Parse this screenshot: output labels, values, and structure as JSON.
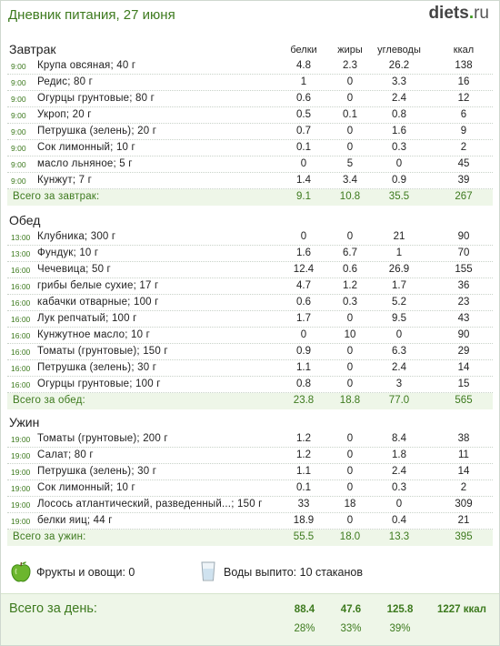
{
  "header": {
    "title": "Дневник питания, 27 июня",
    "logo_main": "diets",
    "logo_dot": ".",
    "logo_tld": "ru"
  },
  "columns": {
    "protein": "белки",
    "fat": "жиры",
    "carbs": "углеводы",
    "kcal": "ккал"
  },
  "breakfast": {
    "title": "Завтрак",
    "items": [
      {
        "time": "9:00",
        "name": "Крупа овсяная; 40 г",
        "protein": "4.8",
        "fat": "2.3",
        "carbs": "26.2",
        "kcal": "138"
      },
      {
        "time": "9:00",
        "name": "Редис; 80 г",
        "protein": "1",
        "fat": "0",
        "carbs": "3.3",
        "kcal": "16"
      },
      {
        "time": "9:00",
        "name": "Огурцы грунтовые; 80 г",
        "protein": "0.6",
        "fat": "0",
        "carbs": "2.4",
        "kcal": "12"
      },
      {
        "time": "9:00",
        "name": "Укроп; 20 г",
        "protein": "0.5",
        "fat": "0.1",
        "carbs": "0.8",
        "kcal": "6"
      },
      {
        "time": "9:00",
        "name": "Петрушка (зелень); 20 г",
        "protein": "0.7",
        "fat": "0",
        "carbs": "1.6",
        "kcal": "9"
      },
      {
        "time": "9:00",
        "name": "Сок лимонный; 10 г",
        "protein": "0.1",
        "fat": "0",
        "carbs": "0.3",
        "kcal": "2"
      },
      {
        "time": "9:00",
        "name": "масло льняное; 5 г",
        "protein": "0",
        "fat": "5",
        "carbs": "0",
        "kcal": "45"
      },
      {
        "time": "9:00",
        "name": "Кунжут; 7 г",
        "protein": "1.4",
        "fat": "3.4",
        "carbs": "0.9",
        "kcal": "39"
      }
    ],
    "total": {
      "label": "Всего за завтрак:",
      "protein": "9.1",
      "fat": "10.8",
      "carbs": "35.5",
      "kcal": "267"
    }
  },
  "lunch": {
    "title": "Обед",
    "items": [
      {
        "time": "13:00",
        "name": "Клубника; 300 г",
        "protein": "0",
        "fat": "0",
        "carbs": "21",
        "kcal": "90"
      },
      {
        "time": "13:00",
        "name": "Фундук; 10 г",
        "protein": "1.6",
        "fat": "6.7",
        "carbs": "1",
        "kcal": "70"
      },
      {
        "time": "16:00",
        "name": "Чечевица; 50 г",
        "protein": "12.4",
        "fat": "0.6",
        "carbs": "26.9",
        "kcal": "155"
      },
      {
        "time": "16:00",
        "name": "грибы белые сухие; 17 г",
        "protein": "4.7",
        "fat": "1.2",
        "carbs": "1.7",
        "kcal": "36"
      },
      {
        "time": "16:00",
        "name": "кабачки отварные; 100 г",
        "protein": "0.6",
        "fat": "0.3",
        "carbs": "5.2",
        "kcal": "23"
      },
      {
        "time": "16:00",
        "name": "Лук репчатый; 100 г",
        "protein": "1.7",
        "fat": "0",
        "carbs": "9.5",
        "kcal": "43"
      },
      {
        "time": "16:00",
        "name": "Кунжутное масло; 10 г",
        "protein": "0",
        "fat": "10",
        "carbs": "0",
        "kcal": "90"
      },
      {
        "time": "16:00",
        "name": "Томаты (грунтовые); 150 г",
        "protein": "0.9",
        "fat": "0",
        "carbs": "6.3",
        "kcal": "29"
      },
      {
        "time": "16:00",
        "name": "Петрушка (зелень); 30 г",
        "protein": "1.1",
        "fat": "0",
        "carbs": "2.4",
        "kcal": "14"
      },
      {
        "time": "16:00",
        "name": "Огурцы грунтовые; 100 г",
        "protein": "0.8",
        "fat": "0",
        "carbs": "3",
        "kcal": "15"
      }
    ],
    "total": {
      "label": "Всего за обед:",
      "protein": "23.8",
      "fat": "18.8",
      "carbs": "77.0",
      "kcal": "565"
    }
  },
  "dinner": {
    "title": "Ужин",
    "items": [
      {
        "time": "19:00",
        "name": "Томаты (грунтовые); 200 г",
        "protein": "1.2",
        "fat": "0",
        "carbs": "8.4",
        "kcal": "38"
      },
      {
        "time": "19:00",
        "name": "Салат; 80 г",
        "protein": "1.2",
        "fat": "0",
        "carbs": "1.8",
        "kcal": "11"
      },
      {
        "time": "19:00",
        "name": "Петрушка (зелень); 30 г",
        "protein": "1.1",
        "fat": "0",
        "carbs": "2.4",
        "kcal": "14"
      },
      {
        "time": "19:00",
        "name": "Сок лимонный; 10 г",
        "protein": "0.1",
        "fat": "0",
        "carbs": "0.3",
        "kcal": "2"
      },
      {
        "time": "19:00",
        "name": "Лосось атлантический, разведенный...; 150 г",
        "protein": "33",
        "fat": "18",
        "carbs": "0",
        "kcal": "309"
      },
      {
        "time": "19:00",
        "name": "белки яиц; 44 г",
        "protein": "18.9",
        "fat": "0",
        "carbs": "0.4",
        "kcal": "21"
      }
    ],
    "total": {
      "label": "Всего за ужин:",
      "protein": "55.5",
      "fat": "18.0",
      "carbs": "13.3",
      "kcal": "395"
    }
  },
  "extras": {
    "fruit_icon": "green-apple-icon",
    "fruit_text": "Фрукты и овощи: 0",
    "water_icon": "water-glass-icon",
    "water_text": "Воды выпито: 10 стаканов"
  },
  "day_total": {
    "label": "Всего за день:",
    "protein": "88.4",
    "fat": "47.6",
    "carbs": "125.8",
    "kcal": "1227 ккал",
    "protein_pct": "28%",
    "fat_pct": "33%",
    "carbs_pct": "39%"
  },
  "colors": {
    "accent_green": "#3d7a1e",
    "total_row_bg": "#eef6e8"
  }
}
